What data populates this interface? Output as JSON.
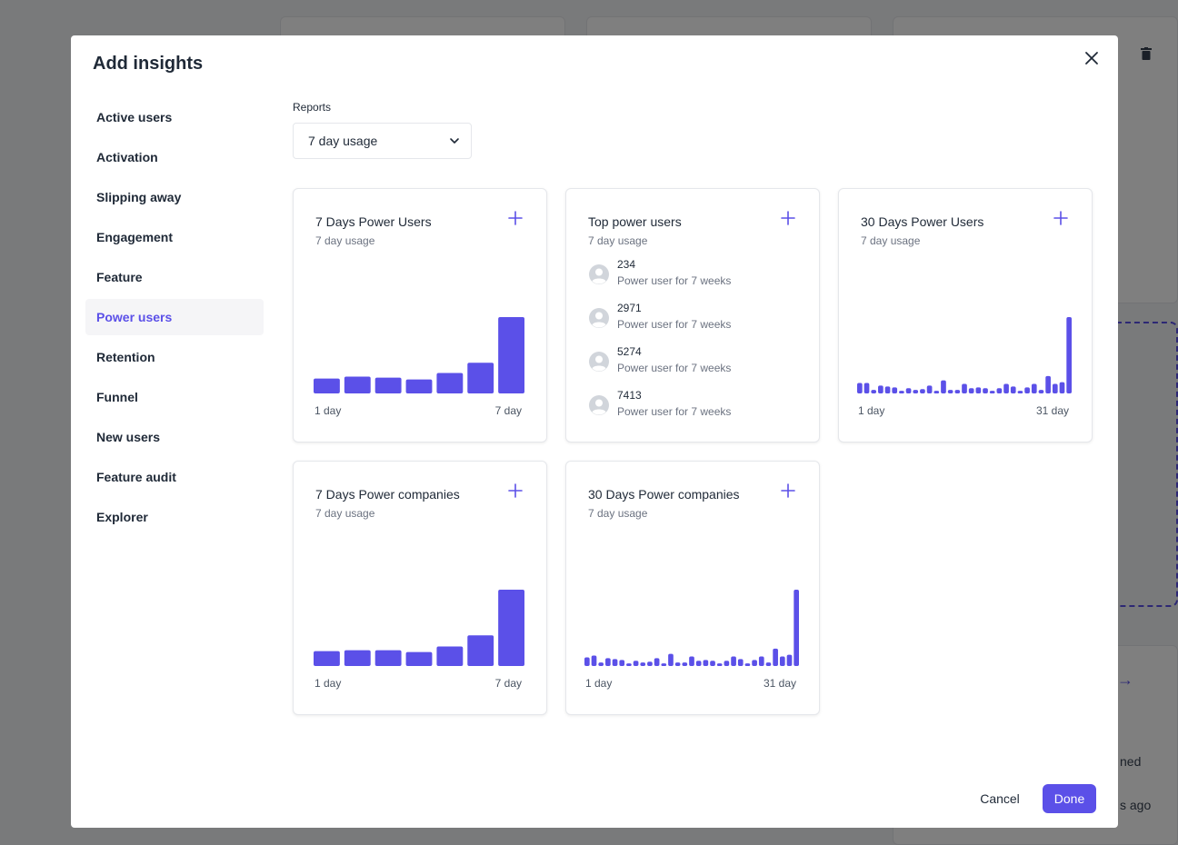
{
  "modal": {
    "title": "Add insights",
    "done_label": "Done",
    "cancel_label": "Cancel"
  },
  "side_nav": {
    "items": [
      {
        "label": "Active users"
      },
      {
        "label": "Activation"
      },
      {
        "label": "Slipping away"
      },
      {
        "label": "Engagement"
      },
      {
        "label": "Feature"
      },
      {
        "label": "Power users",
        "active": true
      },
      {
        "label": "Retention"
      },
      {
        "label": "Funnel"
      },
      {
        "label": "New users"
      },
      {
        "label": "Feature audit"
      },
      {
        "label": "Explorer"
      }
    ]
  },
  "reports": {
    "label": "Reports",
    "selected": "7 day usage"
  },
  "background": {
    "partial_text_1": "ned",
    "partial_text_2": "s ago"
  },
  "cards": {
    "power_users_7": {
      "title": "7 Days Power Users",
      "subtitle": "7 day usage"
    },
    "top_power_users": {
      "title": "Top power users",
      "subtitle": "7 day usage",
      "users": [
        {
          "id": "234",
          "desc": "Power user for 7 weeks"
        },
        {
          "id": "2971",
          "desc": "Power user for 7 weeks"
        },
        {
          "id": "5274",
          "desc": "Power user for 7 weeks"
        },
        {
          "id": "7413",
          "desc": "Power user for 7 weeks"
        }
      ]
    },
    "power_users_30": {
      "title": "30 Days Power Users",
      "subtitle": "7 day usage"
    },
    "power_companies_7": {
      "title": "7 Days Power companies",
      "subtitle": "7 day usage"
    },
    "power_companies_30": {
      "title": "30 Days Power companies",
      "subtitle": "7 day usage"
    }
  },
  "colors": {
    "accent": "#5b50e8"
  },
  "chart_data": [
    {
      "type": "bar",
      "id": "power_users_7",
      "tick_labels": [
        "1 day",
        "7 day"
      ],
      "values": [
        16,
        18,
        17,
        15,
        22,
        33,
        82
      ]
    },
    {
      "type": "bar",
      "id": "power_users_30",
      "tick_labels": [
        "1 day",
        "31 day"
      ],
      "values": [
        12,
        12,
        4,
        9,
        8,
        7,
        3,
        6,
        4,
        5,
        9,
        3,
        15,
        4,
        4,
        11,
        6,
        7,
        6,
        3,
        6,
        11,
        8,
        3,
        7,
        11,
        4,
        20,
        11,
        13,
        88
      ]
    },
    {
      "type": "bar",
      "id": "power_companies_7",
      "tick_labels": [
        "1 day",
        "7 day"
      ],
      "values": [
        16,
        17,
        17,
        15,
        21,
        33,
        82
      ]
    },
    {
      "type": "bar",
      "id": "power_companies_30",
      "tick_labels": [
        "1 day",
        "31 day"
      ],
      "values": [
        10,
        12,
        4,
        9,
        8,
        7,
        3,
        6,
        4,
        5,
        9,
        3,
        14,
        4,
        4,
        11,
        6,
        7,
        6,
        3,
        6,
        11,
        8,
        3,
        7,
        11,
        4,
        20,
        11,
        13,
        88
      ]
    }
  ]
}
